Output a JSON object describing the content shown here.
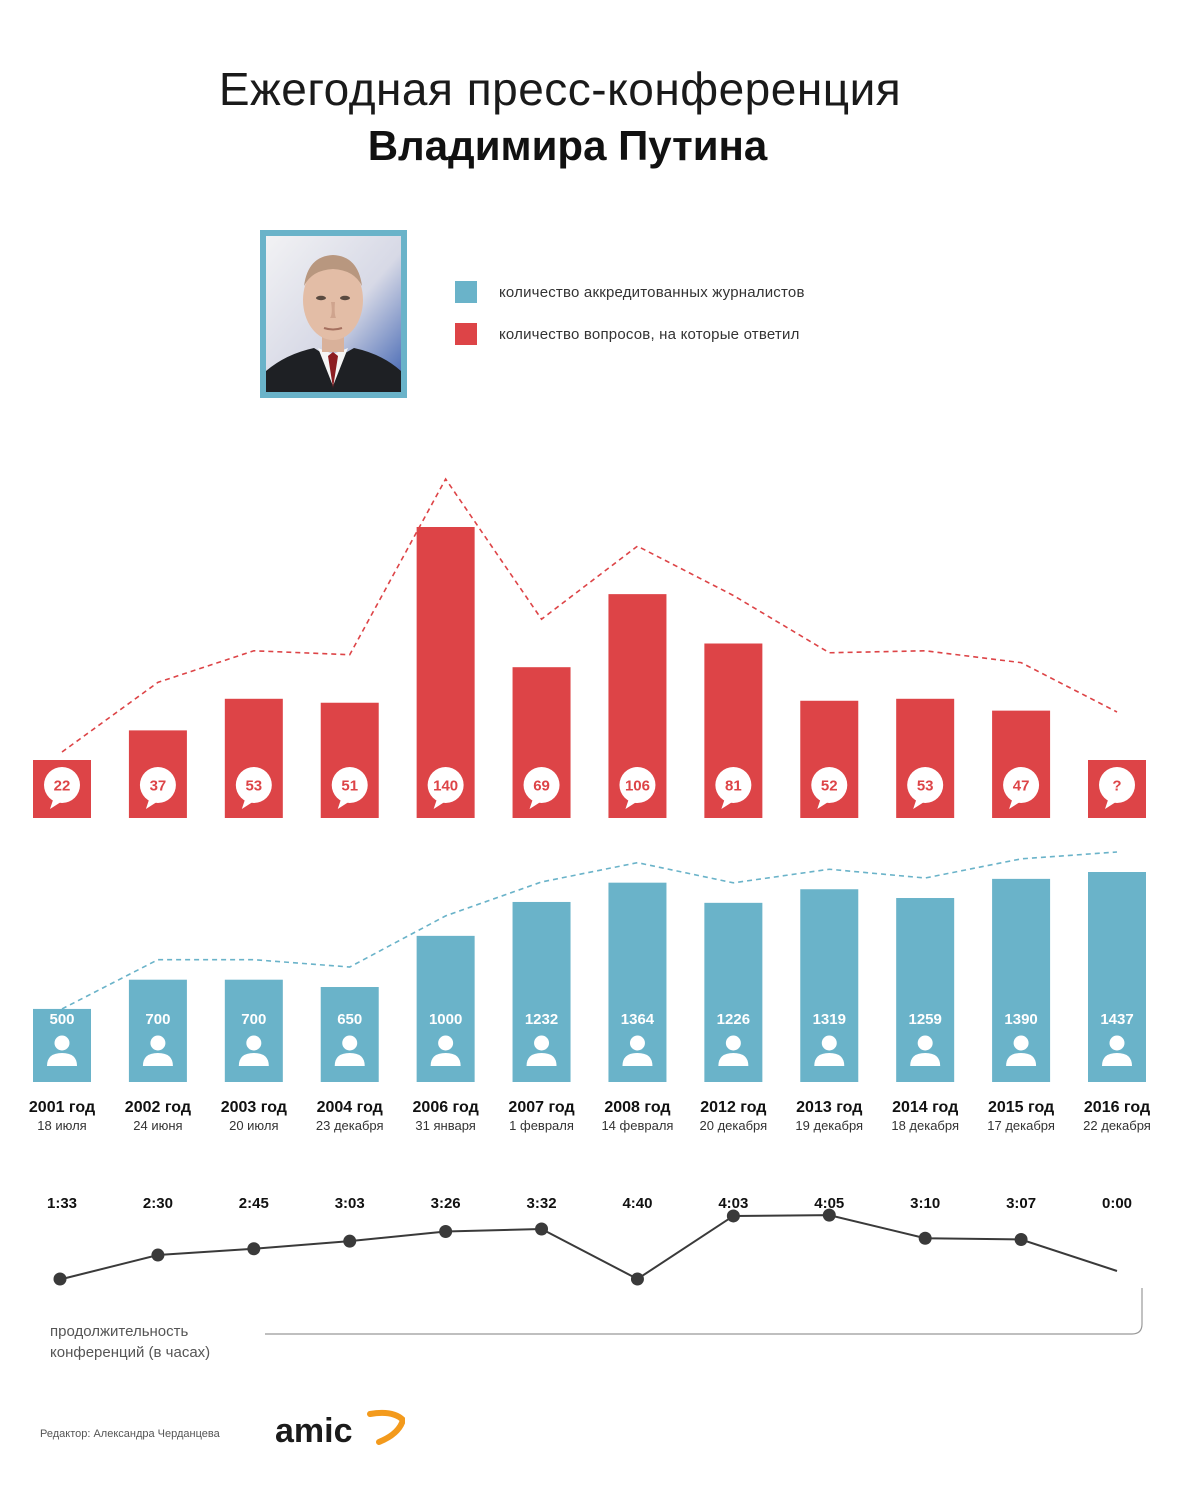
{
  "title_line1": "Ежегодная пресс-конференция",
  "title_line2": "Владимира Путина",
  "legend": {
    "journalists_label": "количество аккредитованных журналистов",
    "questions_label": "количество вопросов, на которые ответил",
    "journalists_color": "#6ab3c9",
    "questions_color": "#dd4447"
  },
  "duration_caption_line1": "продолжительность",
  "duration_caption_line2": "конференций (в часах)",
  "editor": "Редактор: Александра Черданцева",
  "logo_text": "amic",
  "chart_data": {
    "type": "bar",
    "categories": [
      "2001 год",
      "2002 год",
      "2003 год",
      "2004 год",
      "2006 год",
      "2007 год",
      "2008 год",
      "2012 год",
      "2013 год",
      "2014 год",
      "2015 год",
      "2016 год"
    ],
    "dates": [
      "18 июля",
      "24 июня",
      "20 июля",
      "23 декабря",
      "31 января",
      "1 февраля",
      "14 февраля",
      "20 декабря",
      "19 декабря",
      "18 декабря",
      "17 декабря",
      "22 декабря"
    ],
    "series": [
      {
        "name": "количество вопросов, на которые ответил",
        "values": [
          22,
          37,
          53,
          51,
          140,
          69,
          106,
          81,
          52,
          53,
          47,
          null
        ],
        "labels": [
          "22",
          "37",
          "53",
          "51",
          "140",
          "69",
          "106",
          "81",
          "52",
          "53",
          "47",
          "?"
        ],
        "color": "#dd4447"
      },
      {
        "name": "количество аккредитованных журналистов",
        "values": [
          500,
          700,
          700,
          650,
          1000,
          1232,
          1364,
          1226,
          1319,
          1259,
          1390,
          1437
        ],
        "labels": [
          "500",
          "700",
          "700",
          "650",
          "1000",
          "1232",
          "1364",
          "1226",
          "1319",
          "1259",
          "1390",
          "1437"
        ],
        "color": "#6ab3c9"
      },
      {
        "name": "продолжительность конференций (в часах)",
        "type": "line",
        "values_hours": [
          1.55,
          2.5,
          2.75,
          3.05,
          3.433,
          3.533,
          4.667,
          4.05,
          4.083,
          3.167,
          3.117,
          0
        ],
        "labels": [
          "1:33",
          "2:30",
          "2:45",
          "3:03",
          "3:26",
          "3:32",
          "4:40",
          "4:03",
          "4:05",
          "3:10",
          "3:07",
          "0:00"
        ],
        "color": "#3a3a3a"
      }
    ],
    "legend_position": "top"
  }
}
